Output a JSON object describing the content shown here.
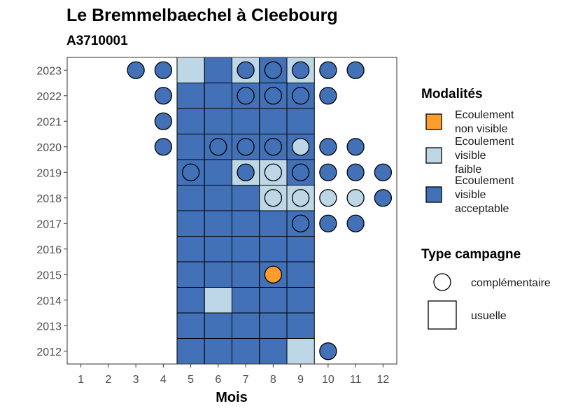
{
  "chart_data": {
    "type": "heatmap",
    "title": "Le Bremmelbaechel à Cleebourg",
    "subtitle": "A3710001",
    "xlabel": "Mois",
    "ylabel": "",
    "x_ticks": [
      1,
      2,
      3,
      4,
      5,
      6,
      7,
      8,
      9,
      10,
      11,
      12
    ],
    "y_ticks": [
      2012,
      2013,
      2014,
      2015,
      2016,
      2017,
      2018,
      2019,
      2020,
      2021,
      2022,
      2023
    ],
    "xlim": [
      0.5,
      12.5
    ],
    "ylim": [
      2011.5,
      2023.5
    ],
    "colors": {
      "Ecoulement non visible": "#fe9c2d",
      "Ecoulement visible faible": "#bdd7e7",
      "Ecoulement visible acceptable": "#4271b7"
    },
    "legend_modalites": {
      "title": "Modalités",
      "items": [
        {
          "key": "Ecoulement non visible",
          "lines": [
            "Ecoulement",
            "non visible"
          ]
        },
        {
          "key": "Ecoulement visible faible",
          "lines": [
            "Ecoulement",
            "visible",
            "faible"
          ]
        },
        {
          "key": "Ecoulement visible acceptable",
          "lines": [
            "Ecoulement",
            "visible",
            "acceptable"
          ]
        }
      ]
    },
    "legend_type": {
      "title": "Type campagne",
      "items": [
        {
          "shape": "circle",
          "label": "complémentaire"
        },
        {
          "shape": "square",
          "label": "usuelle"
        }
      ]
    },
    "usuelle": [
      {
        "year": 2023,
        "months": [
          5,
          6,
          7,
          8,
          9
        ],
        "codes": [
          "F",
          "A",
          "F",
          "A",
          "F"
        ]
      },
      {
        "year": 2022,
        "months": [
          5,
          6,
          7,
          8,
          9
        ],
        "codes": [
          "A",
          "A",
          "A",
          "A",
          "A"
        ]
      },
      {
        "year": 2021,
        "months": [
          5,
          6,
          7,
          8,
          9
        ],
        "codes": [
          "A",
          "A",
          "A",
          "A",
          "A"
        ]
      },
      {
        "year": 2020,
        "months": [
          5,
          6,
          7,
          8,
          9
        ],
        "codes": [
          "A",
          "A",
          "A",
          "A",
          "A"
        ]
      },
      {
        "year": 2019,
        "months": [
          5,
          6,
          7,
          8,
          9
        ],
        "codes": [
          "A",
          "A",
          "F",
          "F",
          "A"
        ]
      },
      {
        "year": 2018,
        "months": [
          5,
          6,
          7,
          8,
          9
        ],
        "codes": [
          "A",
          "A",
          "A",
          "F",
          "F"
        ]
      },
      {
        "year": 2017,
        "months": [
          5,
          6,
          7,
          8,
          9
        ],
        "codes": [
          "A",
          "A",
          "A",
          "A",
          "A"
        ]
      },
      {
        "year": 2016,
        "months": [
          5,
          6,
          7,
          8,
          9
        ],
        "codes": [
          "A",
          "A",
          "A",
          "A",
          "A"
        ]
      },
      {
        "year": 2015,
        "months": [
          5,
          6,
          7,
          8,
          9
        ],
        "codes": [
          "A",
          "A",
          "A",
          "A",
          "A"
        ]
      },
      {
        "year": 2014,
        "months": [
          5,
          6,
          7,
          8,
          9
        ],
        "codes": [
          "A",
          "F",
          "A",
          "A",
          "A"
        ]
      },
      {
        "year": 2013,
        "months": [
          5,
          6,
          7,
          8,
          9
        ],
        "codes": [
          "A",
          "A",
          "A",
          "A",
          "A"
        ]
      },
      {
        "year": 2012,
        "months": [
          5,
          6,
          7,
          8,
          9
        ],
        "codes": [
          "A",
          "A",
          "A",
          "A",
          "F"
        ]
      }
    ],
    "complementaire": [
      {
        "year": 2023,
        "months": [
          3,
          4,
          7,
          8,
          9,
          10,
          11
        ],
        "codes": [
          "A",
          "A",
          "A",
          "A",
          "A",
          "A",
          "A"
        ]
      },
      {
        "year": 2022,
        "months": [
          4,
          7,
          8,
          9,
          10
        ],
        "codes": [
          "A",
          "A",
          "A",
          "A",
          "A"
        ]
      },
      {
        "year": 2021,
        "months": [
          4
        ],
        "codes": [
          "A"
        ]
      },
      {
        "year": 2020,
        "months": [
          4,
          6,
          7,
          8,
          9,
          10,
          11
        ],
        "codes": [
          "A",
          "A",
          "A",
          "A",
          "F",
          "A",
          "A"
        ]
      },
      {
        "year": 2019,
        "months": [
          5,
          7,
          8,
          9,
          10,
          11,
          12
        ],
        "codes": [
          "A",
          "A",
          "F",
          "A",
          "A",
          "A",
          "A"
        ]
      },
      {
        "year": 2018,
        "months": [
          8,
          9,
          10,
          11,
          12
        ],
        "codes": [
          "F",
          "F",
          "F",
          "F",
          "A"
        ]
      },
      {
        "year": 2017,
        "months": [
          9,
          10,
          11
        ],
        "codes": [
          "A",
          "A",
          "A"
        ]
      },
      {
        "year": 2015,
        "months": [
          8
        ],
        "codes": [
          "N"
        ]
      },
      {
        "year": 2012,
        "months": [
          10
        ],
        "codes": [
          "A"
        ]
      }
    ],
    "code_map": {
      "N": "Ecoulement non visible",
      "F": "Ecoulement visible faible",
      "A": "Ecoulement visible acceptable"
    },
    "grid": false,
    "legend_position": "right"
  }
}
